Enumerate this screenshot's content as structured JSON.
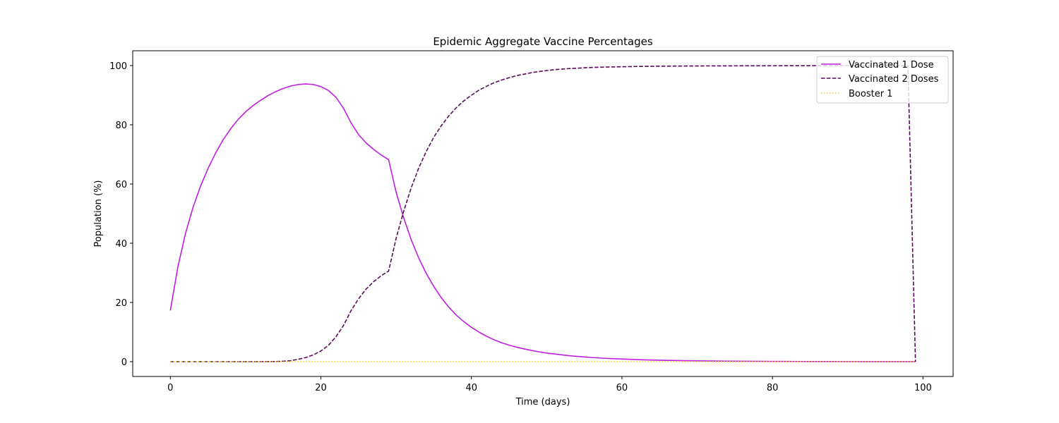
{
  "chart_data": {
    "type": "line",
    "title": "Epidemic Aggregate Vaccine Percentages",
    "xlabel": "Time (days)",
    "ylabel": "Population (%)",
    "xlim": [
      -5,
      104
    ],
    "ylim": [
      -5,
      105
    ],
    "xticks": [
      0,
      20,
      40,
      60,
      80,
      100
    ],
    "yticks": [
      0,
      20,
      40,
      60,
      80,
      100
    ],
    "grid": false,
    "legend_position": "upper right",
    "x": [
      0,
      1,
      2,
      3,
      4,
      5,
      6,
      7,
      8,
      9,
      10,
      11,
      12,
      13,
      14,
      15,
      16,
      17,
      18,
      19,
      20,
      21,
      22,
      23,
      24,
      25,
      26,
      27,
      28,
      29,
      30,
      31,
      32,
      33,
      34,
      35,
      36,
      37,
      38,
      39,
      40,
      41,
      42,
      43,
      44,
      45,
      46,
      47,
      48,
      49,
      50,
      51,
      52,
      53,
      54,
      55,
      56,
      57,
      58,
      59,
      60,
      61,
      62,
      63,
      64,
      65,
      66,
      67,
      68,
      69,
      70,
      71,
      72,
      73,
      74,
      75,
      76,
      77,
      78,
      79,
      80,
      81,
      82,
      83,
      84,
      85,
      86,
      87,
      88,
      89,
      90,
      91,
      92,
      93,
      94,
      95,
      96,
      97,
      98,
      99
    ],
    "series": [
      {
        "name": "Vaccinated 1 Dose",
        "color": "#bf1fe0",
        "style": "solid",
        "values": [
          17.3,
          32.0,
          43.2,
          52.0,
          59.2,
          65.2,
          70.4,
          74.9,
          78.6,
          81.8,
          84.4,
          86.5,
          88.3,
          89.9,
          91.2,
          92.3,
          93.1,
          93.6,
          93.8,
          93.6,
          92.9,
          91.6,
          89.3,
          85.6,
          80.7,
          76.7,
          73.9,
          71.7,
          69.8,
          68.2,
          57.2,
          48.6,
          41.2,
          35.0,
          29.8,
          25.4,
          21.6,
          18.4,
          15.7,
          13.5,
          11.6,
          10.0,
          8.6,
          7.4,
          6.4,
          5.6,
          4.9,
          4.3,
          3.8,
          3.3,
          2.9,
          2.6,
          2.3,
          2.0,
          1.8,
          1.6,
          1.4,
          1.25,
          1.1,
          1.0,
          0.9,
          0.8,
          0.7,
          0.62,
          0.55,
          0.49,
          0.44,
          0.39,
          0.35,
          0.31,
          0.28,
          0.25,
          0.22,
          0.2,
          0.18,
          0.16,
          0.14,
          0.13,
          0.12,
          0.1,
          0.09,
          0.08,
          0.07,
          0.06,
          0.06,
          0.05,
          0.05,
          0.04,
          0.04,
          0.03,
          0.03,
          0.03,
          0.02,
          0.02,
          0.02,
          0.02,
          0.01,
          0.01,
          0.01,
          0.01
        ]
      },
      {
        "name": "Vaccinated 2 Doses",
        "color": "#5a0a5e",
        "style": "dashed",
        "values": [
          0,
          0,
          0,
          0,
          0,
          0,
          0,
          0,
          0,
          0,
          0,
          0,
          0,
          0.02,
          0.05,
          0.15,
          0.35,
          0.8,
          1.4,
          2.3,
          3.6,
          5.5,
          8.4,
          12.2,
          17.2,
          21.2,
          24.5,
          27.0,
          29.0,
          30.6,
          41.7,
          50.8,
          58.7,
          65.4,
          71.0,
          75.8,
          79.7,
          83.0,
          85.8,
          88.1,
          90.0,
          91.7,
          93.0,
          94.2,
          95.1,
          95.9,
          96.6,
          97.1,
          97.6,
          98.0,
          98.3,
          98.6,
          98.8,
          99.0,
          99.1,
          99.25,
          99.35,
          99.45,
          99.5,
          99.55,
          99.6,
          99.65,
          99.7,
          99.72,
          99.75,
          99.78,
          99.8,
          99.82,
          99.84,
          99.86,
          99.87,
          99.88,
          99.89,
          99.9,
          99.9,
          99.91,
          99.92,
          99.92,
          99.93,
          99.93,
          99.94,
          99.94,
          99.95,
          99.95,
          99.95,
          99.96,
          99.96,
          99.96,
          99.96,
          99.97,
          99.97,
          99.97,
          99.97,
          99.98,
          99.98,
          99.98,
          99.98,
          99.98,
          99.98,
          0
        ]
      },
      {
        "name": "Booster 1",
        "color": "#e8d800",
        "style": "dotted",
        "values": [
          0,
          0,
          0,
          0,
          0,
          0,
          0,
          0,
          0,
          0,
          0,
          0,
          0,
          0,
          0,
          0,
          0,
          0,
          0,
          0,
          0,
          0,
          0,
          0,
          0,
          0,
          0,
          0,
          0,
          0,
          0,
          0,
          0,
          0,
          0,
          0,
          0,
          0,
          0,
          0,
          0,
          0,
          0,
          0,
          0,
          0,
          0,
          0,
          0,
          0,
          0,
          0,
          0,
          0,
          0,
          0,
          0,
          0,
          0,
          0,
          0,
          0,
          0,
          0,
          0,
          0,
          0,
          0,
          0,
          0,
          0,
          0,
          0,
          0,
          0,
          0,
          0,
          0,
          0,
          0,
          0,
          0,
          0,
          0,
          0,
          0,
          0,
          0,
          0,
          0,
          0,
          0,
          0,
          0,
          0,
          0,
          0,
          0,
          0,
          0
        ]
      }
    ]
  }
}
